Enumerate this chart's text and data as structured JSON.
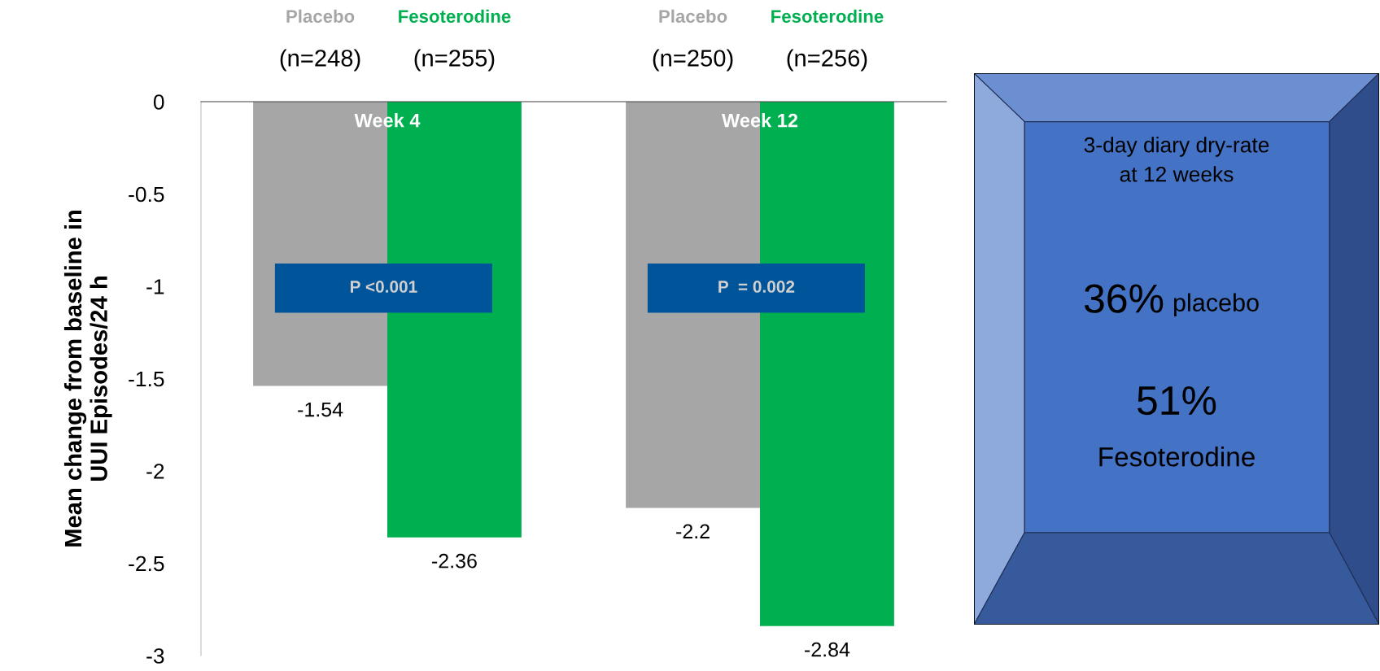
{
  "chart_data": [
    {
      "type": "bar",
      "ylabel": "Mean change from baseline in\nUUI Episodes/24 h",
      "categories": [
        "Week 4",
        "Week 12"
      ],
      "series": [
        {
          "name": "Placebo",
          "color": "#a6a6a6",
          "values": [
            -1.54,
            -2.2
          ]
        },
        {
          "name": "Fesoterodine",
          "color": "#00b050",
          "values": [
            -2.36,
            -2.84
          ]
        }
      ],
      "ylim": [
        -3,
        0
      ],
      "yticks": [
        0,
        -0.5,
        -1,
        -1.5,
        -2,
        -2.5,
        -3
      ],
      "data_labels": true,
      "grid": false,
      "legend": false,
      "annotations": [
        "(n=248)",
        "(n=255)",
        "(n=250)",
        "(n=256)",
        "P <0.001",
        "P  = 0.002"
      ]
    },
    {
      "type": "other",
      "annotations": [
        "3-day diary dry-rate\nat 12 weeks",
        "36%",
        "placebo",
        "51%",
        "Fesoterodine"
      ]
    }
  ]
}
